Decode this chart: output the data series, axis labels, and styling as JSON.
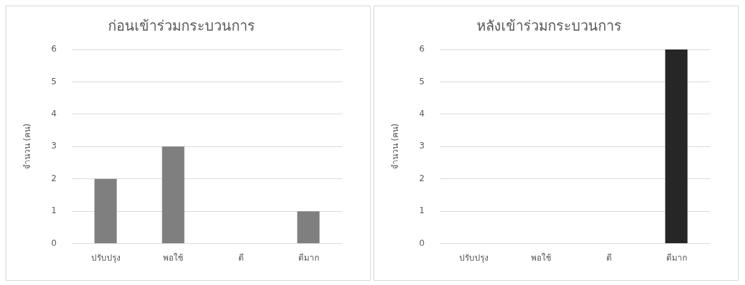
{
  "chart_data": [
    {
      "type": "bar",
      "title": "ก่อนเข้าร่วมกระบวนการ",
      "ylabel": "จำนวน (คน)",
      "categories": [
        "ปรับปรุง",
        "พอใช้",
        "ดี",
        "ดีมาก"
      ],
      "values": [
        2,
        3,
        0,
        1
      ],
      "color": "#7f7f7f",
      "ylim": [
        0,
        6
      ],
      "yticks": [
        0,
        1,
        2,
        3,
        4,
        5,
        6
      ],
      "grid": "y",
      "legend": false
    },
    {
      "type": "bar",
      "title": "หลังเข้าร่วมกระบวนการ",
      "ylabel": "จำนวน (คน)",
      "categories": [
        "ปรับปรุง",
        "พอใช้",
        "ดี",
        "ดีมาก"
      ],
      "values": [
        0,
        0,
        0,
        6
      ],
      "color": "#262626",
      "ylim": [
        0,
        6
      ],
      "yticks": [
        0,
        1,
        2,
        3,
        4,
        5,
        6
      ],
      "grid": "y",
      "legend": false
    }
  ]
}
